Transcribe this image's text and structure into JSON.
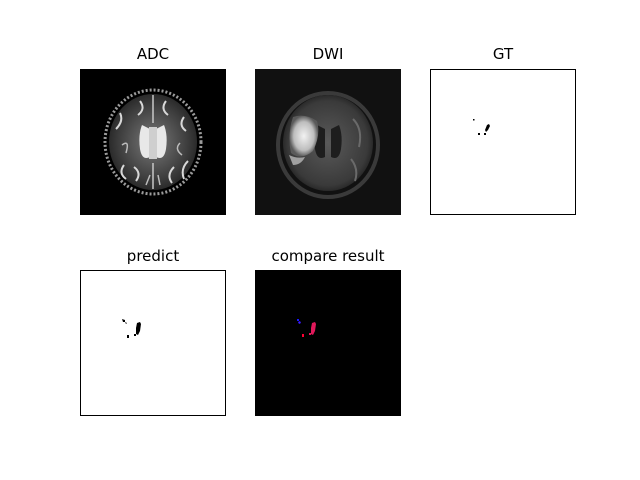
{
  "figure": {
    "panels": [
      {
        "id": "adc",
        "title": "ADC",
        "kind": "mri-adc"
      },
      {
        "id": "dwi",
        "title": "DWI",
        "kind": "mri-dwi"
      },
      {
        "id": "gt",
        "title": "GT",
        "kind": "binary-mask"
      },
      {
        "id": "predict",
        "title": "predict",
        "kind": "binary-mask"
      },
      {
        "id": "compare",
        "title": "compare result",
        "kind": "overlay-mask"
      }
    ],
    "colors": {
      "background": "#ffffff",
      "mask_foreground": "#000000",
      "overlay_background": "#000000",
      "overlay_overlap": "#e0185a",
      "overlay_gt_only": "#1a1aff",
      "overlay_pred_only": "#ff0033"
    }
  }
}
